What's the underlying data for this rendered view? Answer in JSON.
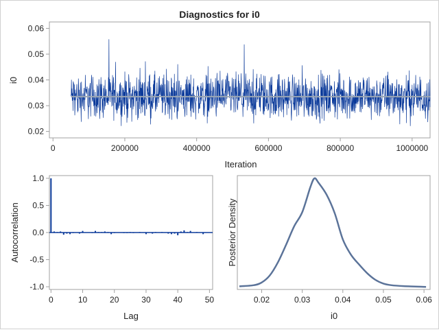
{
  "title": "Diagnostics for i0",
  "colors": {
    "trace": "#0b3a9a",
    "trace_mean": "#9aa6b4",
    "acf": "#0b3a9a",
    "density": "#5b7399",
    "frame": "#a0a0a0"
  },
  "chart_data": [
    {
      "type": "line",
      "panel": "trace",
      "xlabel": "Iteration",
      "ylabel": "i0",
      "xlim": [
        -10000,
        1050000
      ],
      "ylim": [
        0.0175,
        0.0625
      ],
      "xticks": [
        0,
        200000,
        400000,
        600000,
        800000,
        1000000
      ],
      "xtick_labels": [
        "0",
        "200000",
        "400000",
        "600000",
        "800000",
        "1000000"
      ],
      "yticks": [
        0.02,
        0.03,
        0.04,
        0.05,
        0.06
      ],
      "ytick_labels": [
        "0.02",
        "0.03",
        "0.04",
        "0.05",
        "0.06"
      ],
      "iteration_range": [
        50000,
        1050000
      ],
      "mean": 0.0335,
      "min": 0.018,
      "max": 0.057
    },
    {
      "type": "bar",
      "panel": "autocorrelation",
      "xlabel": "Lag",
      "ylabel": "Autocorrelation",
      "xlim": [
        -0.5,
        51
      ],
      "ylim": [
        -1.05,
        1.05
      ],
      "xticks": [
        0,
        10,
        20,
        30,
        40,
        50
      ],
      "xtick_labels": [
        "0",
        "10",
        "20",
        "30",
        "40",
        "50"
      ],
      "yticks": [
        1.0,
        0.5,
        0.0,
        -0.5,
        -1.0
      ],
      "ytick_labels": [
        "1.0",
        "0.5",
        "0.0",
        "-0.5",
        "-1.0"
      ],
      "lags": [
        0,
        1,
        2,
        3,
        4,
        5,
        6,
        7,
        8,
        9,
        10,
        11,
        12,
        13,
        14,
        15,
        16,
        17,
        18,
        19,
        20,
        21,
        22,
        23,
        24,
        25,
        26,
        27,
        28,
        29,
        30,
        31,
        32,
        33,
        34,
        35,
        36,
        37,
        38,
        39,
        40,
        41,
        42,
        43,
        44,
        45,
        46,
        47,
        48,
        49,
        50
      ],
      "values": [
        1.0,
        0.02,
        0.01,
        0.02,
        -0.04,
        -0.02,
        -0.03,
        -0.01,
        0.0,
        -0.02,
        0.03,
        0.0,
        0.0,
        -0.01,
        0.03,
        0.01,
        0.01,
        0.02,
        0.01,
        -0.03,
        -0.01,
        0.0,
        0.0,
        -0.01,
        -0.01,
        0.01,
        -0.01,
        0.0,
        0.01,
        0.0,
        -0.03,
        0.0,
        -0.02,
        0.01,
        0.0,
        0.01,
        0.0,
        -0.02,
        -0.03,
        -0.02,
        -0.05,
        0.02,
        0.04,
        0.01,
        0.03,
        0.0,
        0.01,
        0.0,
        -0.03,
        0.0,
        0.0
      ]
    },
    {
      "type": "line",
      "panel": "density",
      "xlabel": "i0",
      "ylabel": "Posterior Density",
      "xlim": [
        0.014,
        0.0615
      ],
      "xticks": [
        0.02,
        0.03,
        0.04,
        0.05,
        0.06
      ],
      "xtick_labels": [
        "0.02",
        "0.03",
        "0.04",
        "0.05",
        "0.06"
      ],
      "x": [
        0.0145,
        0.018,
        0.02,
        0.022,
        0.024,
        0.026,
        0.028,
        0.03,
        0.032,
        0.033,
        0.034,
        0.036,
        0.038,
        0.04,
        0.042,
        0.044,
        0.046,
        0.048,
        0.05,
        0.052,
        0.055,
        0.0605
      ],
      "y": [
        0.01,
        0.02,
        0.045,
        0.11,
        0.23,
        0.39,
        0.56,
        0.69,
        0.92,
        1.0,
        0.96,
        0.85,
        0.68,
        0.44,
        0.3,
        0.21,
        0.13,
        0.07,
        0.035,
        0.02,
        0.012,
        0.005
      ]
    }
  ]
}
